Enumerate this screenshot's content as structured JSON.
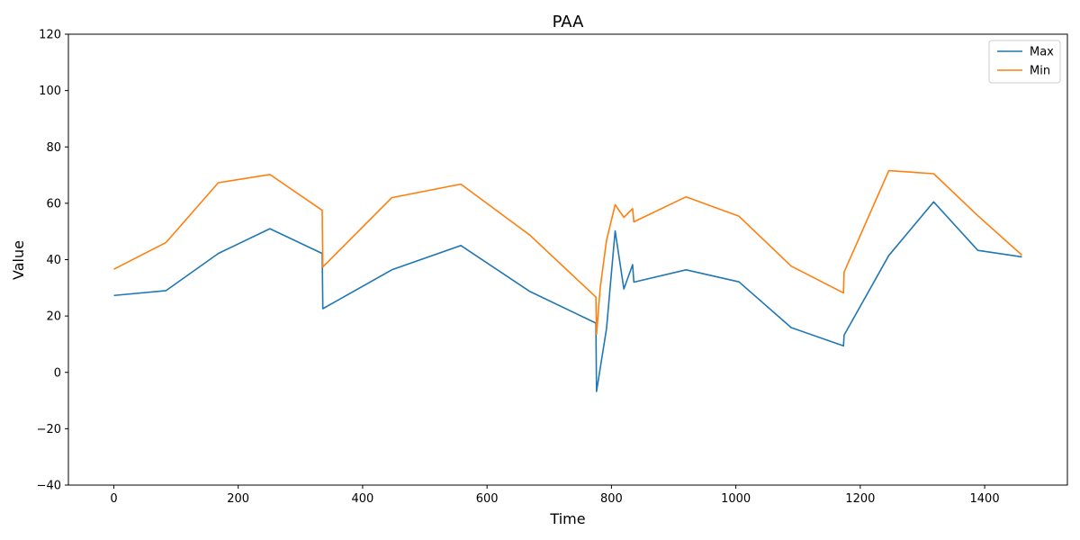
{
  "chart_data": {
    "type": "line",
    "title": "PAA",
    "xlabel": "Time",
    "ylabel": "Value",
    "xlim": [
      -73,
      1533
    ],
    "ylim": [
      -40,
      120
    ],
    "xticks": [
      0,
      200,
      400,
      600,
      800,
      1000,
      1200,
      1400
    ],
    "yticks": [
      -40,
      -20,
      0,
      20,
      40,
      60,
      80,
      100,
      120
    ],
    "ytick_labels": [
      "−40",
      "−20",
      "0",
      "20",
      "40",
      "60",
      "80",
      "100",
      "120"
    ],
    "grid": false,
    "legend": "top-right",
    "series": [
      {
        "name": "Max",
        "color": "#1f77b4",
        "x": [
          0,
          84,
          168,
          251,
          335,
          336,
          447,
          558,
          669,
          775,
          776,
          792,
          806,
          820,
          834,
          836,
          920,
          1005,
          1089,
          1173,
          1174,
          1246,
          1318,
          1389,
          1460
        ],
        "y": [
          27.3,
          29.0,
          42.2,
          51.0,
          42.2,
          22.6,
          36.4,
          45.0,
          28.7,
          17.5,
          -6.8,
          15.5,
          50.2,
          29.6,
          38.2,
          32.0,
          36.4,
          32.1,
          15.9,
          9.4,
          13.2,
          41.5,
          60.5,
          43.3,
          41.0
        ]
      },
      {
        "name": "Min",
        "color": "#ff7f0e",
        "x": [
          0,
          84,
          168,
          251,
          335,
          336,
          447,
          558,
          669,
          775,
          776,
          782,
          792,
          806,
          820,
          834,
          836,
          920,
          1005,
          1089,
          1173,
          1174,
          1246,
          1318,
          1389,
          1460
        ],
        "y": [
          36.6,
          46.1,
          67.3,
          70.2,
          57.5,
          37.4,
          62.0,
          66.8,
          48.7,
          26.7,
          13.5,
          30.0,
          46.8,
          59.5,
          55.0,
          58.1,
          53.4,
          62.3,
          55.4,
          37.7,
          28.2,
          35.6,
          71.6,
          70.5,
          55.6,
          41.6
        ]
      }
    ]
  }
}
